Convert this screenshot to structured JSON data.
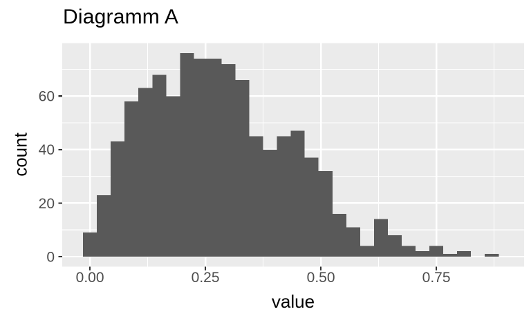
{
  "title": "Diagramm A",
  "chart_data": {
    "type": "bar",
    "subtype": "histogram",
    "title": "Diagramm A",
    "xlabel": "value",
    "ylabel": "count",
    "bin_start": -0.015,
    "bin_width": 0.03,
    "counts": [
      9,
      23,
      43,
      58,
      63,
      68,
      60,
      76,
      74,
      74,
      72,
      66,
      45,
      40,
      45,
      47,
      37,
      32,
      16,
      11,
      4,
      14,
      8,
      4,
      2,
      4,
      1,
      2,
      0,
      1
    ],
    "x_ticks": [
      0.0,
      0.25,
      0.5,
      0.75
    ],
    "x_tick_labels": [
      "0.00",
      "0.25",
      "0.50",
      "0.75"
    ],
    "x_minor_gridlines": [
      0.125,
      0.375,
      0.625,
      0.875
    ],
    "y_ticks": [
      0,
      20,
      40,
      60
    ],
    "y_tick_labels": [
      "0",
      "20",
      "40",
      "60"
    ],
    "y_minor_gridlines": [
      10,
      30,
      50,
      70
    ],
    "xlim": [
      -0.06,
      0.94
    ],
    "ylim": [
      -3.79,
      79.8
    ],
    "grid": true,
    "legend_position": "none",
    "colors": {
      "bar": "#595959",
      "panel_background": "#EBEBEB",
      "gridline": "#FFFFFF",
      "tick_label": "#4D4D4D",
      "tick_mark": "#333333",
      "title_text": "#000000",
      "page_background": "#FFFFFF"
    }
  }
}
